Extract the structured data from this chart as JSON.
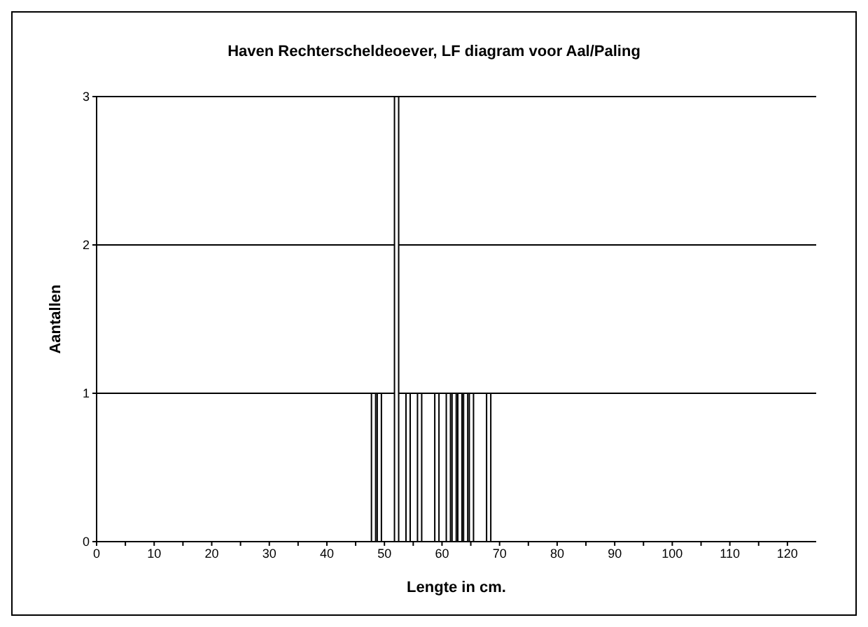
{
  "chart_data": {
    "type": "bar",
    "title": "Haven Rechterscheldeoever, LF diagram voor Aal/Paling",
    "xlabel": "Lengte in cm.",
    "ylabel": "Aantallen",
    "x": [
      48,
      49,
      52,
      54,
      56,
      59,
      61,
      62,
      63,
      64,
      65,
      68
    ],
    "values": [
      1,
      1,
      3,
      1,
      1,
      1,
      1,
      1,
      1,
      1,
      1,
      1
    ],
    "color": "#000000",
    "xlim": [
      0,
      125
    ],
    "xticks": [
      0,
      {
        "value": 5,
        "label": null
      },
      10,
      {
        "value": 15,
        "label": null
      },
      20,
      {
        "value": 25,
        "label": null
      },
      30,
      {
        "value": 35,
        "label": null
      },
      40,
      {
        "value": 45,
        "label": null
      },
      50,
      {
        "value": 55,
        "label": null
      },
      60,
      {
        "value": 65,
        "label": null
      },
      70,
      {
        "value": 75,
        "label": null
      },
      80,
      {
        "value": 85,
        "label": null
      },
      90,
      {
        "value": 95,
        "label": null
      },
      100,
      {
        "value": 105,
        "label": null
      },
      110,
      {
        "value": 115,
        "label": null
      },
      120
    ],
    "ylim": [
      0,
      3
    ],
    "yticks": [
      0,
      1,
      2,
      3
    ],
    "grid": "y"
  }
}
